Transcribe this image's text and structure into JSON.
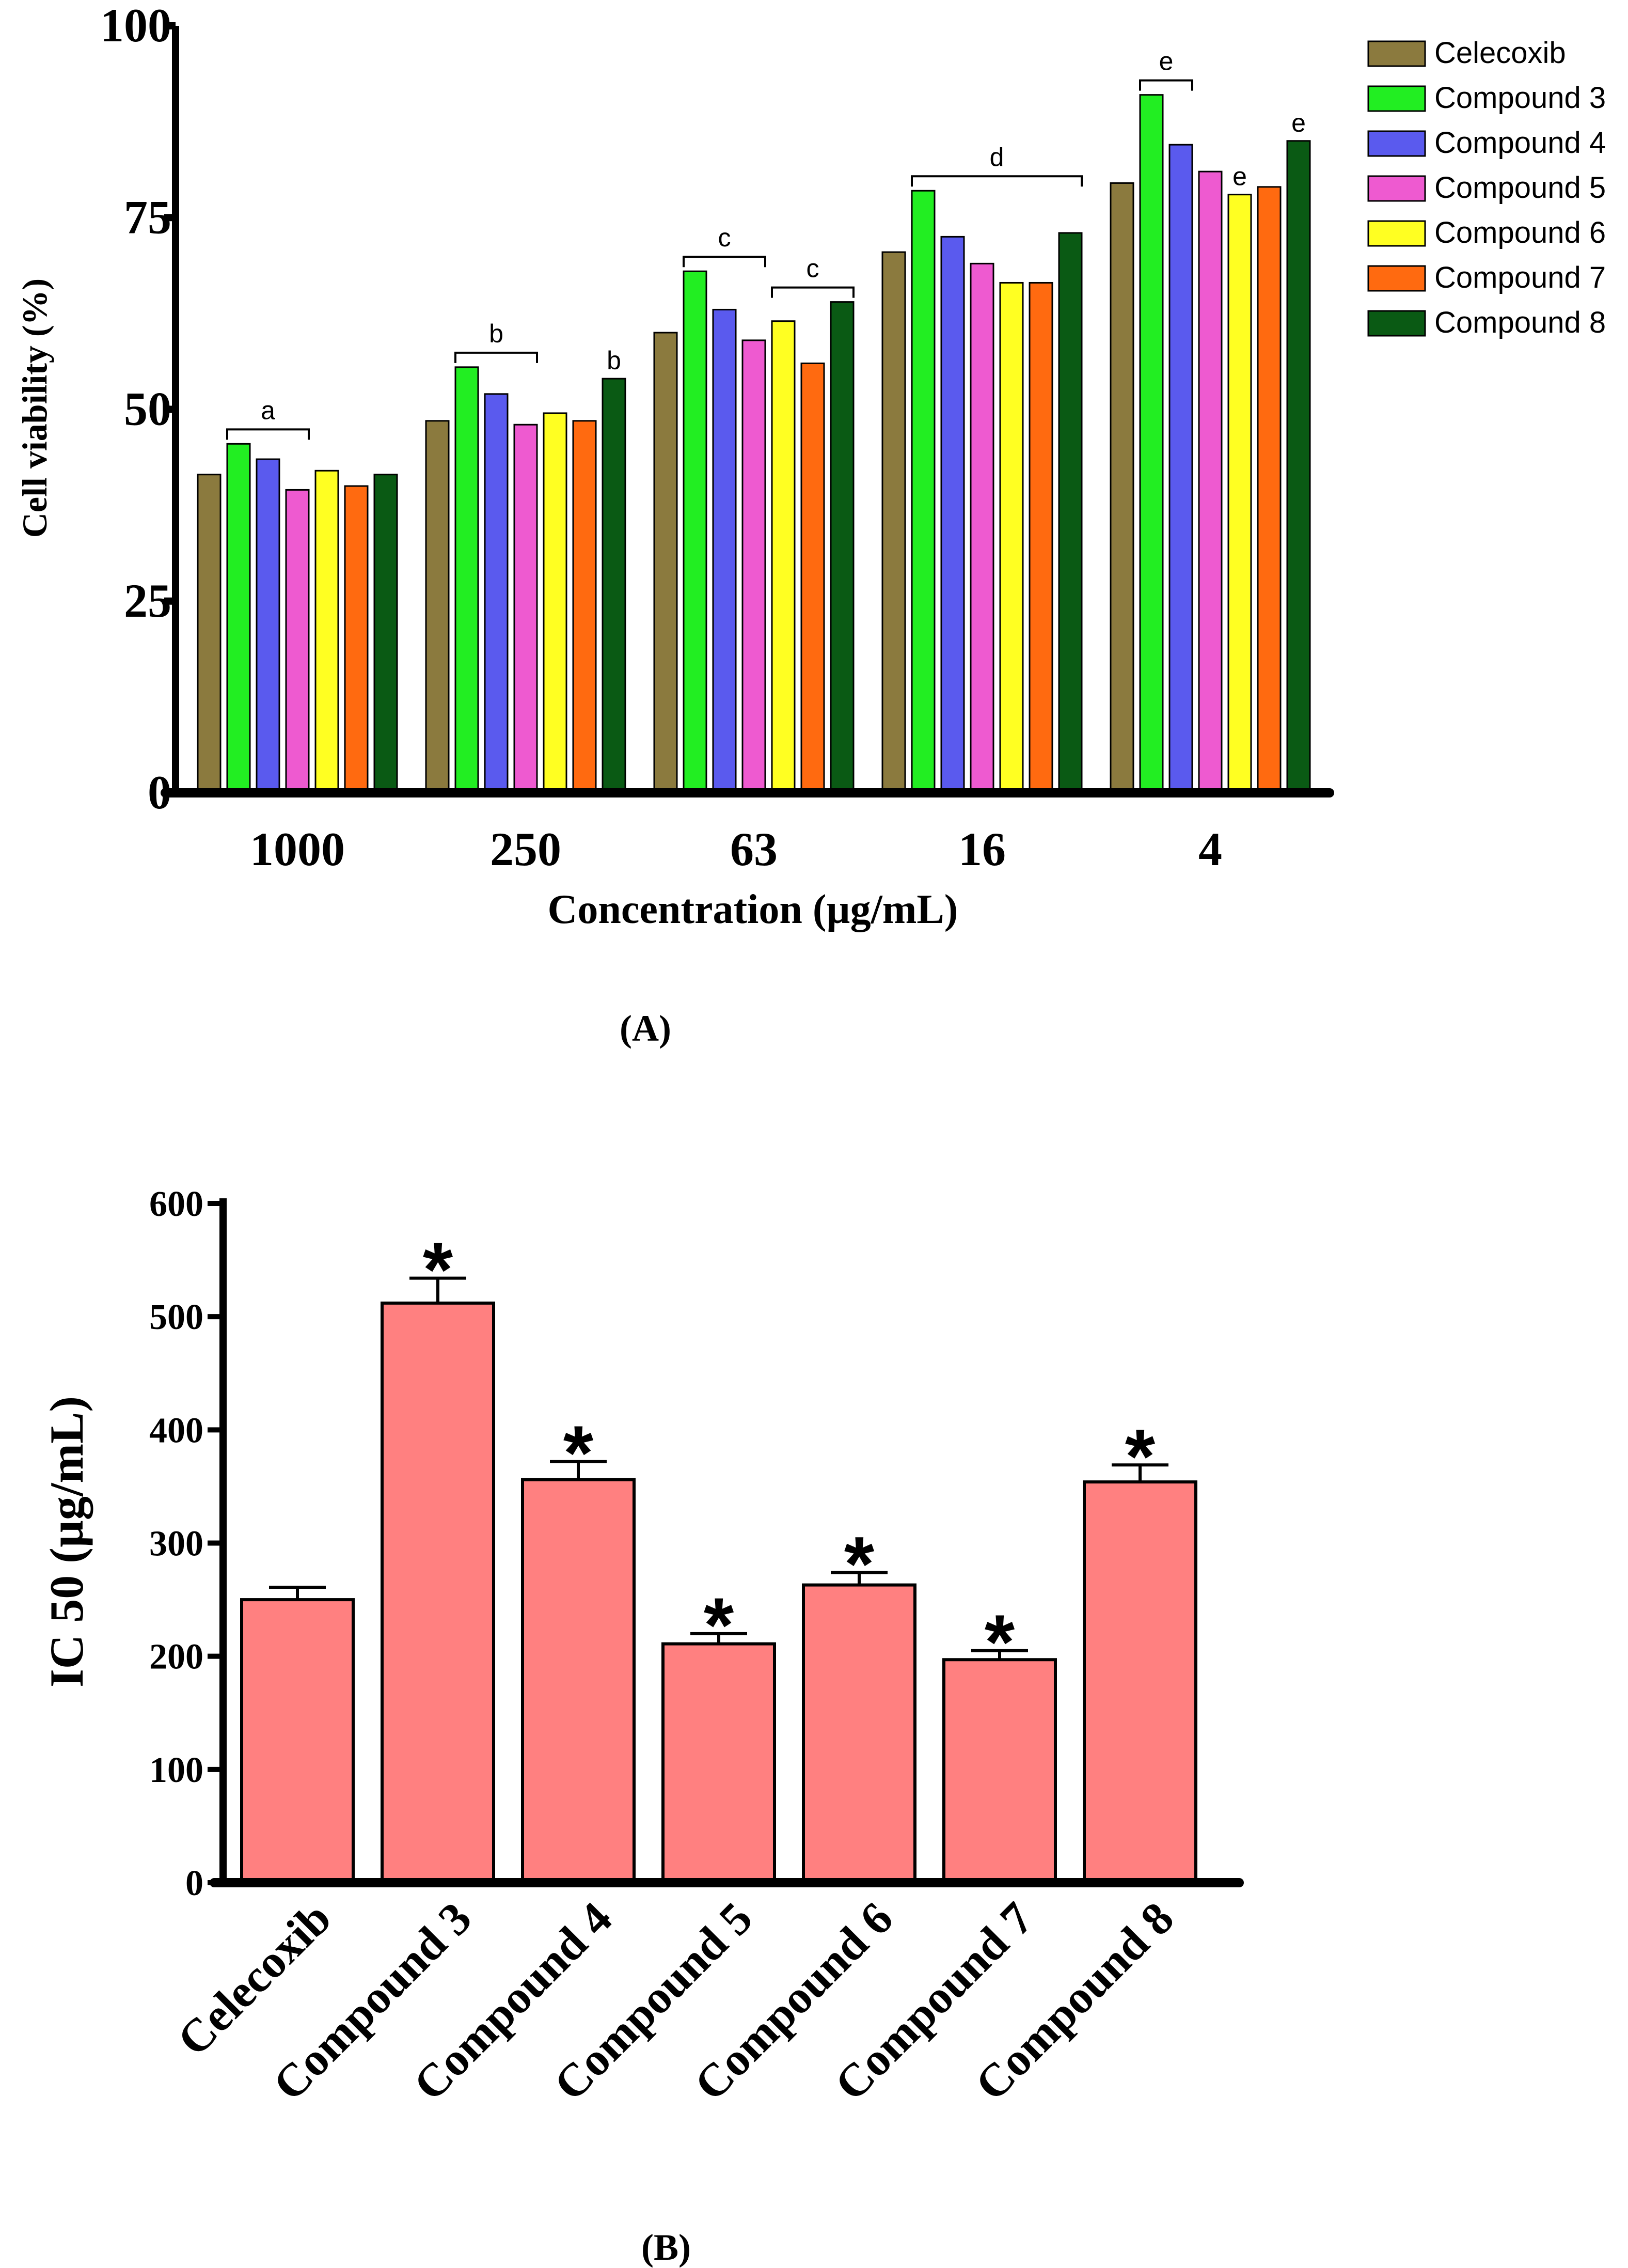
{
  "chart_data": [
    {
      "type": "bar",
      "panel_label": "A",
      "panel_caption": "(A)",
      "title": "",
      "xlabel": "Concentration (µg/mL)",
      "ylabel": "Cell viability (%)",
      "ylim": [
        0,
        100
      ],
      "yticks": [
        0,
        25,
        50,
        75,
        100
      ],
      "grid": false,
      "legend_position": "top-right",
      "categories": [
        "1000",
        "250",
        "63",
        "16",
        "4"
      ],
      "series": [
        {
          "name": "Celecoxib",
          "color": "#8B7A3E",
          "values": [
            41.5,
            48.5,
            60,
            70.5,
            79.5
          ]
        },
        {
          "name": "Compound 3",
          "color": "#22EE22",
          "values": [
            45.5,
            55.5,
            68,
            78.5,
            91
          ]
        },
        {
          "name": "Compound 4",
          "color": "#5A5AEE",
          "values": [
            43.5,
            52,
            63,
            72.5,
            84.5
          ]
        },
        {
          "name": "Compound 5",
          "color": "#EE5AD0",
          "values": [
            39.5,
            48,
            59,
            69,
            81
          ]
        },
        {
          "name": "Compound 6",
          "color": "#FFFF22",
          "values": [
            42,
            49.5,
            61.5,
            66.5,
            78
          ]
        },
        {
          "name": "Compound 7",
          "color": "#FF6A10",
          "values": [
            40,
            48.5,
            56,
            66.5,
            79
          ]
        },
        {
          "name": "Compound 8",
          "color": "#0A5A14",
          "values": [
            41.5,
            54,
            64,
            73,
            85
          ]
        }
      ],
      "annotations": [
        {
          "text": "a",
          "type": "bracket",
          "category": 0,
          "from_series": 1,
          "to_series": 3
        },
        {
          "text": "b",
          "type": "bracket",
          "category": 1,
          "from_series": 1,
          "to_series": 3
        },
        {
          "text": "b",
          "type": "label",
          "category": 1,
          "series": 6
        },
        {
          "text": "c",
          "type": "bracket",
          "category": 2,
          "from_series": 1,
          "to_series": 3
        },
        {
          "text": "c",
          "type": "bracket",
          "category": 2,
          "from_series": 4,
          "to_series": 6
        },
        {
          "text": "d",
          "type": "bracket",
          "category": 3,
          "from_series": 1,
          "to_series": 6
        },
        {
          "text": "e",
          "type": "bracket",
          "category": 4,
          "from_series": 1,
          "to_series": 2
        },
        {
          "text": "e",
          "type": "label",
          "category": 4,
          "series": 4
        },
        {
          "text": "e",
          "type": "label",
          "category": 4,
          "series": 6
        }
      ]
    },
    {
      "type": "bar",
      "panel_label": "B",
      "panel_caption": "(B)",
      "title": "",
      "xlabel": "",
      "ylabel": "IC 50 (µg/mL)",
      "ylim": [
        0,
        600
      ],
      "yticks": [
        0,
        100,
        200,
        300,
        400,
        500,
        600
      ],
      "grid": false,
      "bar_color": "#FF8080",
      "categories": [
        "Celecoxib",
        "Compound 3",
        "Compound 4",
        "Compound 5",
        "Compound 6",
        "Compound 7",
        "Compound 8"
      ],
      "values": [
        250,
        512,
        356,
        211,
        263,
        197,
        354
      ],
      "errors": [
        11,
        22,
        16,
        9,
        11,
        8,
        15
      ],
      "significance": [
        "",
        "*",
        "*",
        "*",
        "*",
        "*",
        "*"
      ]
    }
  ]
}
